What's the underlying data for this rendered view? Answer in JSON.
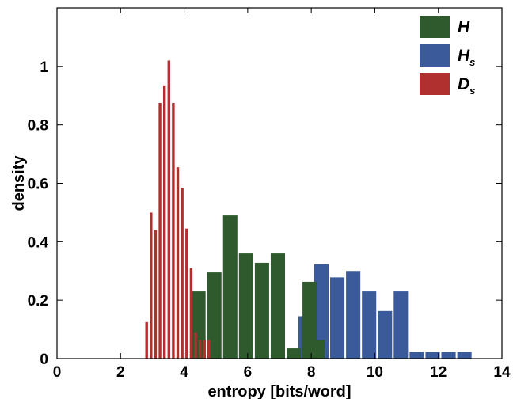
{
  "chart_data": {
    "type": "bar",
    "title": "",
    "xlabel": "entropy [bits/word]",
    "ylabel": "density",
    "xlim": [
      0,
      14
    ],
    "ylim": [
      0,
      1.2
    ],
    "xticks": [
      "0",
      "2",
      "4",
      "6",
      "8",
      "10",
      "12",
      "14"
    ],
    "yticks": [
      "0",
      "0.2",
      "0.4",
      "0.6",
      "0.8",
      "1"
    ],
    "grid": false,
    "legend_position": "top-right",
    "series": [
      {
        "name": "H",
        "name_main": "H",
        "name_sub": "",
        "color": "#2e5a2e",
        "bin_width": 0.5,
        "x": [
          4.45,
          4.95,
          5.45,
          5.95,
          6.45,
          6.95,
          7.45,
          7.95,
          8.2
        ],
        "values": [
          0.23,
          0.295,
          0.49,
          0.36,
          0.328,
          0.36,
          0.035,
          0.263,
          0.035
        ]
      },
      {
        "name": "H_s",
        "name_main": "H",
        "name_sub": "s",
        "color": "#3a5a9a",
        "bin_width": 0.5,
        "x": [
          7.82,
          8.32,
          8.82,
          9.32,
          9.82,
          10.32,
          10.82,
          11.32,
          11.82,
          12.32,
          12.82
        ],
        "values": [
          0.145,
          0.323,
          0.278,
          0.3,
          0.23,
          0.163,
          0.23,
          0.023,
          0.023,
          0.023,
          0.023
        ]
      },
      {
        "name": "D_s",
        "name_main": "D",
        "name_sub": "s",
        "color": "#b03030",
        "bin_width": 0.135,
        "x": [
          2.82,
          2.96,
          3.1,
          3.24,
          3.38,
          3.52,
          3.66,
          3.8,
          3.94,
          4.08,
          4.22,
          4.36,
          4.5,
          4.64,
          4.78,
          4.92
        ],
        "values": [
          0.125,
          0.5,
          0.44,
          0.875,
          0.935,
          1.02,
          0.875,
          0.655,
          0.585,
          0.445,
          0.31,
          0.09,
          0.065,
          0.065,
          0.0,
          0.0
        ]
      }
    ]
  },
  "overlay_bars": {
    "H_front": {
      "x": [
        8.2
      ],
      "values": [
        0.065
      ]
    },
    "Ds_extra": {
      "x": [
        4.78
      ],
      "values": [
        0.065
      ]
    }
  }
}
